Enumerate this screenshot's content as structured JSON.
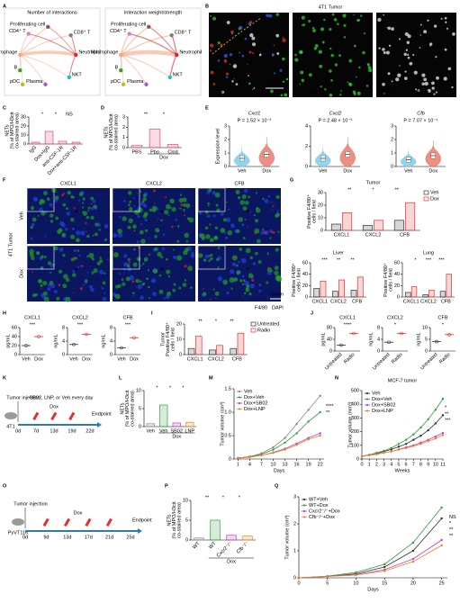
{
  "panels": [
    "A",
    "B",
    "C",
    "D",
    "E",
    "F",
    "G",
    "H",
    "I",
    "J",
    "K",
    "L",
    "M",
    "N",
    "O",
    "P",
    "Q"
  ],
  "diagram_a": {
    "titles": [
      "Number of interactions",
      "Interaction weight/strength"
    ],
    "nodes": [
      {
        "label": "CD4⁺ T",
        "color": "#e377c2"
      },
      {
        "label": "Proliferating cell",
        "color": "#8c564b"
      },
      {
        "label": "CD8⁺ T",
        "color": "#7f7f7f"
      },
      {
        "label": "Macrophage",
        "color": "#f4a582"
      },
      {
        "label": "Neutrophil",
        "color": "#d62728"
      },
      {
        "label": "B",
        "color": "#2ca02c"
      },
      {
        "label": "NKT",
        "color": "#17becf"
      },
      {
        "label": "pDC",
        "color": "#bcbd22"
      },
      {
        "label": "Plasma",
        "color": "#9467bd"
      }
    ]
  },
  "image_b": {
    "title": "4T1 Tumor",
    "channels": [
      {
        "text": "H3cit",
        "color": "#ff3030"
      },
      {
        "text": "MPO",
        "color": "#30e030"
      },
      {
        "text": "F4/80",
        "color": "#ffffff"
      },
      {
        "text": "DAPI",
        "color": "#4060ff"
      }
    ],
    "scale_bar": "50μm"
  },
  "image_f": {
    "columns": [
      "CXCL1",
      "CXCL2",
      "CFB"
    ],
    "column_color": "#e02020",
    "rows": [
      "Veh",
      "Dox"
    ],
    "side": "4T1 Tumor",
    "stains": [
      {
        "text": "F4/80",
        "color": "#20a020"
      },
      {
        "text": "DAPI",
        "color": "#2040e0"
      }
    ],
    "scale_bar": "50μm"
  },
  "schematic_k": {
    "injection": "Tumor injection",
    "cell": "4T1",
    "treatment": "SB02, LNP, or Veh every day",
    "drug": "Dox",
    "end": "Endpoint",
    "days": [
      "0d",
      "7d",
      "13d",
      "19d",
      "22d"
    ]
  },
  "schematic_o": {
    "injection": "Tumor injection",
    "cell": "PyVT116",
    "drug": "Dox",
    "end": "Endpoint",
    "days": [
      "0d",
      "9d",
      "13d",
      "17d",
      "21d",
      "25d"
    ]
  },
  "chart_data": [
    {
      "type": "bar",
      "ylabel": [
        "NETs",
        "(% of MPO/H3cit",
        "co-stained area)"
      ],
      "categories": [
        "IgG",
        "Dox+IgG",
        "anti-CSF-1R",
        "Dox+anti-CSF-1R"
      ],
      "values": [
        2,
        14,
        3,
        2
      ],
      "color": "#e0457b",
      "ylim": [
        0,
        30
      ],
      "yticks": [
        0,
        10,
        20,
        30
      ],
      "annotations": [
        "*",
        "*",
        "NS"
      ]
    },
    {
      "type": "bar",
      "ylabel": [
        "NETs",
        "(% of MPO/H3cit",
        "co-stained area)"
      ],
      "categories": [
        "PBS",
        "Pbo",
        "Clod"
      ],
      "group_label": "Dox",
      "values": [
        0.2,
        1.8,
        0.3
      ],
      "color": "#e0457b",
      "ylim": [
        0,
        3
      ],
      "yticks": [
        0,
        1,
        2,
        3
      ],
      "annotations": [
        "**",
        "*"
      ]
    },
    {
      "type": "violin",
      "title": "Cxcl1",
      "subtitle": "P = 1.52 × 10⁻²",
      "ylabel": "Expression level",
      "categories": [
        "Veh",
        "Dox"
      ],
      "values": [
        0.6,
        0.9
      ],
      "colors": [
        "#6ec6e6",
        "#e8695a"
      ],
      "ylim": [
        0,
        3
      ],
      "yticks": [
        0,
        1,
        2,
        3
      ]
    },
    {
      "type": "violin",
      "title": "Cxcl2",
      "subtitle": "P = 2.48 × 10⁻⁵",
      "categories": [
        "Veh",
        "Dox"
      ],
      "values": [
        0.8,
        1.2
      ],
      "colors": [
        "#6ec6e6",
        "#e8695a"
      ],
      "ylim": [
        0,
        4
      ],
      "yticks": [
        0,
        2,
        4
      ]
    },
    {
      "type": "violin",
      "title": "Cfb",
      "subtitle": "P = 7.07 × 10⁻⁴",
      "categories": [
        "Veh",
        "Dox"
      ],
      "values": [
        0.5,
        0.8
      ],
      "colors": [
        "#6ec6e6",
        "#e8695a"
      ],
      "ylim": [
        0,
        3
      ],
      "yticks": [
        0,
        1,
        2,
        3
      ]
    },
    {
      "type": "bar",
      "title": "Tumor",
      "ylabel": [
        "Positive F4/80⁺",
        "cells / field"
      ],
      "categories": [
        "CXCL1",
        "CXCL2",
        "CFB"
      ],
      "series": [
        {
          "name": "Veh",
          "color": "#333333",
          "values": [
            5,
            4,
            8
          ]
        },
        {
          "name": "Dox",
          "color": "#e03030",
          "values": [
            14,
            8,
            22
          ]
        }
      ],
      "ylim": [
        0,
        30
      ],
      "yticks": [
        0,
        10,
        20,
        30
      ],
      "annotations": [
        "**",
        "*",
        "**"
      ]
    },
    {
      "type": "bar",
      "title": "Liver",
      "ylabel": [
        "Positive F4/80⁺",
        "cells / field"
      ],
      "categories": [
        "CXCL1",
        "CXCL2",
        "CFB"
      ],
      "series": [
        {
          "color": "#333333",
          "values": [
            15,
            10,
            12
          ]
        },
        {
          "color": "#e03030",
          "values": [
            28,
            30,
            35
          ]
        }
      ],
      "ylim": [
        0,
        60
      ],
      "yticks": [
        0,
        20,
        40,
        60
      ],
      "annotations": [
        "***",
        "**",
        "**"
      ]
    },
    {
      "type": "bar",
      "title": "Lung",
      "ylabel": [
        "Positive F4/80⁺",
        "cells / field"
      ],
      "categories": [
        "CXCL1",
        "CXCL2",
        "CFB"
      ],
      "series": [
        {
          "color": "#333333",
          "values": [
            8,
            4,
            10
          ]
        },
        {
          "color": "#e03030",
          "values": [
            18,
            12,
            40
          ]
        }
      ],
      "ylim": [
        0,
        60
      ],
      "yticks": [
        0,
        20,
        40,
        60
      ],
      "annotations": [
        "*",
        "***",
        "***"
      ]
    },
    {
      "type": "dot",
      "title": "CXCL1",
      "ylabel": "pg/mL",
      "categories": [
        "Veh",
        "Dox"
      ],
      "values": [
        20,
        40
      ],
      "colors": [
        "#333333",
        "#e03030"
      ],
      "ylim": [
        0,
        60
      ],
      "yticks": [
        0,
        20,
        40,
        60
      ],
      "annotations": [
        "***"
      ]
    },
    {
      "type": "dot",
      "title": "CXCL2",
      "ylabel": "ng/mL",
      "categories": [
        "Veh",
        "Dox"
      ],
      "values": [
        3,
        6
      ],
      "colors": [
        "#333333",
        "#e03030"
      ],
      "ylim": [
        0,
        8
      ],
      "yticks": [
        0,
        4,
        8
      ],
      "annotations": [
        "***"
      ]
    },
    {
      "type": "dot",
      "title": "CFB",
      "ylabel": "ng/mL",
      "categories": [
        "Veh",
        "Dox"
      ],
      "values": [
        2,
        5
      ],
      "colors": [
        "#333333",
        "#e03030"
      ],
      "ylim": [
        0,
        8
      ],
      "yticks": [
        0,
        4,
        8
      ],
      "annotations": [
        "***"
      ]
    },
    {
      "type": "bar",
      "ylabel": [
        "Tumor",
        "Positive F4/80⁺",
        "cells / field"
      ],
      "categories": [
        "CXCL1",
        "CXCL2",
        "CFB"
      ],
      "series": [
        {
          "name": "Untreated",
          "color": "#333333",
          "values": [
            4,
            3,
            4
          ]
        },
        {
          "name": "Radio",
          "color": "#e03030",
          "values": [
            12,
            6,
            14
          ]
        }
      ],
      "ylim": [
        0,
        20
      ],
      "yticks": [
        0,
        10,
        20
      ],
      "annotations": [
        "**",
        "*",
        "**"
      ]
    },
    {
      "type": "dot",
      "title": "CXCL1",
      "ylabel": "pg/mL",
      "categories": [
        "Untreated",
        "Radio"
      ],
      "values": [
        20,
        60
      ],
      "colors": [
        "#333333",
        "#e03030"
      ],
      "ylim": [
        0,
        80
      ],
      "yticks": [
        0,
        40,
        80
      ],
      "annotations": [
        "****"
      ]
    },
    {
      "type": "dot",
      "title": "CXCL2",
      "ylabel": "ng/mL",
      "categories": [
        "Untreated",
        "Radio"
      ],
      "values": [
        3,
        6
      ],
      "colors": [
        "#333333",
        "#e03030"
      ],
      "ylim": [
        0,
        8
      ],
      "yticks": [
        0,
        4,
        8
      ],
      "annotations": [
        "*"
      ]
    },
    {
      "type": "dot",
      "title": "CFB",
      "ylabel": "ng/mL",
      "categories": [
        "Untreated",
        "Radio"
      ],
      "values": [
        4,
        7
      ],
      "colors": [
        "#333333",
        "#e03030"
      ],
      "ylim": [
        0,
        10
      ],
      "yticks": [
        0,
        5,
        10
      ],
      "annotations": [
        "*"
      ]
    },
    {
      "type": "bar",
      "ylabel": [
        "NETs",
        "(% of MPO/H3cit",
        "co-stained area)"
      ],
      "categories": [
        "Veh",
        "Veh",
        "SB02",
        "LNP"
      ],
      "group_label": "Dox",
      "values": [
        0.8,
        6,
        1,
        1.2
      ],
      "colors": [
        "#888888",
        "#2e9e3e",
        "#c040c0",
        "#f08020"
      ],
      "ylim": [
        0,
        10
      ],
      "yticks": [
        0,
        5,
        10
      ],
      "annotations": [
        "*",
        "*",
        "*"
      ]
    },
    {
      "type": "line",
      "xlabel": "Days",
      "ylabel": "Tumor volume (cm³)",
      "x": [
        1,
        4,
        7,
        10,
        13,
        16,
        19,
        22
      ],
      "xlim": [
        0,
        23
      ],
      "xticks": [
        1,
        4,
        7,
        10,
        13,
        16,
        19,
        22
      ],
      "ylim": [
        0,
        1.5
      ],
      "yticks": [
        0,
        0.5,
        {
          "value": 1,
          "label": "1.0"
        },
        1.5
      ],
      "series": [
        {
          "name": "Veh",
          "color": "#888888",
          "values": [
            0.02,
            0.05,
            0.12,
            0.25,
            0.45,
            0.75,
            1.05,
            1.35
          ]
        },
        {
          "name": "Dox+Veh",
          "color": "#2e9e3e",
          "values": [
            0.02,
            0.05,
            0.1,
            0.2,
            0.35,
            0.55,
            0.8,
            1.0
          ]
        },
        {
          "name": "Dox+SB02",
          "color": "#c040c0",
          "values": [
            0.02,
            0.04,
            0.08,
            0.14,
            0.22,
            0.33,
            0.45,
            0.55
          ]
        },
        {
          "name": "Dox+LNP",
          "color": "#f08020",
          "values": [
            0.02,
            0.04,
            0.08,
            0.13,
            0.2,
            0.3,
            0.42,
            0.5
          ]
        }
      ],
      "annotations": [
        "****",
        "**"
      ]
    },
    {
      "type": "line",
      "title": "MCF-7 tumor",
      "xlabel": "Weeks",
      "ylabel": "Tumor volume (mm³)",
      "x": [
        0,
        1,
        2,
        3,
        4,
        5,
        6,
        7,
        8,
        9,
        10,
        11
      ],
      "xlim": [
        0,
        11
      ],
      "xticks": [
        0,
        1,
        2,
        3,
        4,
        5,
        6,
        7,
        8,
        9,
        10,
        11
      ],
      "ylim": [
        0,
        500
      ],
      "yticks": [
        0,
        100,
        200,
        300,
        400,
        500
      ],
      "series": [
        {
          "name": "Veh",
          "color": "#333333",
          "values": [
            20,
            30,
            40,
            55,
            70,
            90,
            110,
            140,
            170,
            210,
            260,
            320
          ]
        },
        {
          "name": "Dox+Veh",
          "color": "#2e9e3e",
          "values": [
            20,
            30,
            45,
            60,
            80,
            110,
            140,
            180,
            230,
            290,
            360,
            440
          ]
        },
        {
          "name": "Dox+SB02",
          "color": "#c040c0",
          "values": [
            20,
            28,
            35,
            45,
            55,
            70,
            85,
            100,
            120,
            140,
            165,
            190
          ]
        },
        {
          "name": "Dox+LNP",
          "color": "#f08020",
          "values": [
            20,
            28,
            35,
            45,
            55,
            68,
            80,
            95,
            110,
            130,
            150,
            175
          ]
        }
      ],
      "annotations": [
        "*",
        "**",
        "***"
      ]
    },
    {
      "type": "bar",
      "ylabel": [
        "NETs",
        "(% of MPO/H3cit",
        "co-stained area)"
      ],
      "categories": [
        "WT",
        "WT",
        "Cxcr2⁻/⁻",
        "Cfb⁻/⁻"
      ],
      "group_label": "Dox",
      "values": [
        0.5,
        5,
        1.2,
        1
      ],
      "colors": [
        "#888888",
        "#2e9e3e",
        "#c040c0",
        "#f08020"
      ],
      "ylim": [
        0,
        10
      ],
      "yticks": [
        0,
        5,
        10
      ],
      "annotations": [
        "**",
        "*",
        "*"
      ]
    },
    {
      "type": "line",
      "xlabel": "Days",
      "ylabel": "Tumor volume (cm³)",
      "x": [
        0,
        5,
        10,
        15,
        20,
        25
      ],
      "xlim": [
        0,
        26
      ],
      "xticks": [
        0,
        5,
        10,
        15,
        20,
        25
      ],
      "ylim": [
        0,
        3
      ],
      "yticks": [
        0,
        1,
        2,
        3
      ],
      "series": [
        {
          "name": "WT+Veh",
          "color": "#333333",
          "values": [
            0,
            0.05,
            0.15,
            0.4,
            1.0,
            2.2
          ]
        },
        {
          "name": "WT+Dox",
          "color": "#2e9e3e",
          "values": [
            0,
            0.06,
            0.2,
            0.5,
            1.3,
            2.6
          ]
        },
        {
          "name": "Cxcr2⁻/⁻+Dox",
          "color": "#c040c0",
          "values": [
            0,
            0.05,
            0.12,
            0.3,
            0.7,
            1.4
          ]
        },
        {
          "name": "Cfb⁻/⁻+Dox",
          "color": "#f08020",
          "values": [
            0,
            0.05,
            0.1,
            0.25,
            0.6,
            1.2
          ]
        }
      ],
      "annotations": [
        "NS",
        "*",
        "**",
        "**"
      ]
    }
  ]
}
